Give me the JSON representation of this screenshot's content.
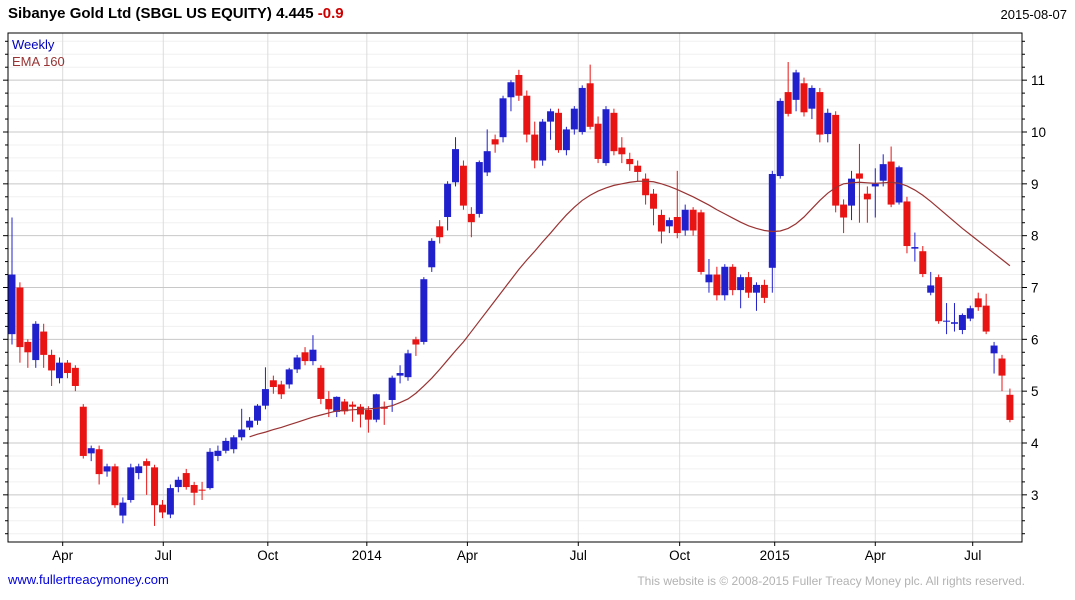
{
  "header": {
    "title": "Sibanye Gold Ltd (SBGL US EQUITY)",
    "price": "4.445",
    "change": "-0.9",
    "date": "2015-08-07"
  },
  "legend": {
    "timeframe": "Weekly",
    "overlay": "EMA 160"
  },
  "footer": {
    "link": "www.fullertreacymoney.com",
    "copyright": "This website is © 2008-2015 Fuller Treacy Money plc. All rights reserved."
  },
  "colors": {
    "up": "#2020cc",
    "down": "#e81414",
    "ema": "#993333",
    "title_change": "#cc0000",
    "grid_major": "#c8c8c8",
    "grid_minor": "#f0f0f0",
    "grid_vertical": "#dcdcdc",
    "axis": "#000000",
    "label": "#000000"
  },
  "chart_data": {
    "type": "candlestick",
    "instrument": "Sibanye Gold Ltd (SBGL US EQUITY)",
    "timeframe": "Weekly",
    "overlay": "EMA 160",
    "last_price": 4.445,
    "change": -0.9,
    "ylim": [
      2.09,
      11.91
    ],
    "y_major_ticks": [
      3,
      4,
      5,
      6,
      7,
      8,
      9,
      10,
      11
    ],
    "y_minor_step": 0.25,
    "x_ticks": [
      {
        "week": 6.4,
        "label": "Apr"
      },
      {
        "week": 19.1,
        "label": "Jul"
      },
      {
        "week": 32.3,
        "label": "Oct"
      },
      {
        "week": 44.8,
        "label": "2014"
      },
      {
        "week": 57.5,
        "label": "Apr"
      },
      {
        "week": 71.5,
        "label": "Jul"
      },
      {
        "week": 84.3,
        "label": "Oct"
      },
      {
        "week": 96.3,
        "label": "2015"
      },
      {
        "week": 109.0,
        "label": "Apr"
      },
      {
        "week": 121.3,
        "label": "Jul"
      }
    ],
    "candles": [
      [
        6.1,
        8.35,
        5.9,
        7.25
      ],
      [
        7.0,
        7.1,
        5.55,
        5.85
      ],
      [
        5.95,
        6.0,
        5.45,
        5.75
      ],
      [
        5.6,
        6.35,
        5.45,
        6.3
      ],
      [
        6.15,
        6.3,
        5.45,
        5.7
      ],
      [
        5.7,
        5.8,
        5.1,
        5.4
      ],
      [
        5.25,
        5.65,
        5.15,
        5.55
      ],
      [
        5.55,
        5.6,
        5.25,
        5.35
      ],
      [
        5.45,
        5.5,
        5.0,
        5.1
      ],
      [
        4.7,
        4.75,
        3.7,
        3.75
      ],
      [
        3.8,
        3.95,
        3.65,
        3.9
      ],
      [
        3.88,
        3.95,
        3.2,
        3.4
      ],
      [
        3.45,
        3.6,
        3.35,
        3.55
      ],
      [
        3.55,
        3.6,
        2.75,
        2.8
      ],
      [
        2.6,
        2.95,
        2.45,
        2.85
      ],
      [
        2.9,
        3.6,
        2.85,
        3.53
      ],
      [
        3.42,
        3.6,
        3.3,
        3.55
      ],
      [
        3.65,
        3.7,
        3.0,
        3.56
      ],
      [
        3.53,
        3.58,
        2.4,
        2.8
      ],
      [
        2.81,
        2.9,
        2.55,
        2.66
      ],
      [
        2.62,
        3.2,
        2.55,
        3.13
      ],
      [
        3.15,
        3.35,
        3.05,
        3.29
      ],
      [
        3.42,
        3.5,
        3.1,
        3.15
      ],
      [
        3.19,
        3.25,
        2.8,
        3.04
      ],
      [
        3.1,
        3.25,
        2.9,
        3.08
      ],
      [
        3.13,
        3.9,
        3.1,
        3.83
      ],
      [
        3.75,
        3.95,
        3.65,
        3.85
      ],
      [
        3.85,
        4.1,
        3.8,
        4.04
      ],
      [
        3.88,
        4.15,
        3.8,
        4.11
      ],
      [
        4.11,
        4.66,
        4.05,
        4.26
      ],
      [
        4.3,
        4.5,
        4.25,
        4.43
      ],
      [
        4.43,
        4.75,
        4.35,
        4.72
      ],
      [
        4.72,
        5.46,
        4.65,
        5.04
      ],
      [
        5.21,
        5.3,
        4.95,
        5.08
      ],
      [
        5.13,
        5.2,
        4.85,
        4.94
      ],
      [
        5.13,
        5.45,
        5.05,
        5.42
      ],
      [
        5.42,
        5.7,
        5.35,
        5.65
      ],
      [
        5.75,
        5.85,
        5.5,
        5.58
      ],
      [
        5.58,
        6.08,
        5.5,
        5.8
      ],
      [
        5.45,
        5.5,
        4.75,
        4.85
      ],
      [
        4.85,
        5.0,
        4.5,
        4.65
      ],
      [
        4.6,
        4.9,
        4.5,
        4.89
      ],
      [
        4.8,
        4.85,
        4.55,
        4.61
      ],
      [
        4.74,
        4.8,
        4.41,
        4.7
      ],
      [
        4.7,
        4.75,
        4.3,
        4.55
      ],
      [
        4.64,
        4.71,
        4.2,
        4.45
      ],
      [
        4.45,
        4.95,
        4.4,
        4.94
      ],
      [
        4.7,
        4.8,
        4.35,
        4.66
      ],
      [
        4.83,
        5.3,
        4.6,
        5.26
      ],
      [
        5.3,
        5.5,
        5.15,
        5.35
      ],
      [
        5.27,
        5.8,
        5.2,
        5.73
      ],
      [
        6.0,
        6.05,
        5.68,
        5.9
      ],
      [
        5.95,
        7.2,
        5.9,
        7.16
      ],
      [
        7.39,
        7.95,
        7.3,
        7.9
      ],
      [
        8.18,
        8.3,
        7.85,
        7.97
      ],
      [
        8.36,
        9.05,
        8.1,
        9.0
      ],
      [
        9.03,
        9.9,
        8.95,
        9.67
      ],
      [
        9.35,
        9.45,
        8.5,
        8.58
      ],
      [
        8.42,
        8.55,
        7.97,
        8.26
      ],
      [
        8.42,
        9.45,
        8.35,
        9.42
      ],
      [
        9.22,
        10.05,
        9.15,
        9.63
      ],
      [
        9.86,
        9.95,
        9.6,
        9.76
      ],
      [
        9.9,
        10.7,
        9.8,
        10.65
      ],
      [
        10.67,
        11.0,
        10.4,
        10.96
      ],
      [
        11.1,
        11.2,
        10.6,
        10.7
      ],
      [
        10.7,
        10.8,
        9.8,
        9.95
      ],
      [
        9.95,
        10.2,
        9.3,
        9.45
      ],
      [
        9.45,
        10.25,
        9.35,
        10.2
      ],
      [
        10.2,
        10.45,
        9.85,
        10.4
      ],
      [
        10.37,
        10.45,
        9.6,
        9.65
      ],
      [
        9.65,
        10.1,
        9.55,
        10.05
      ],
      [
        10.05,
        10.5,
        9.95,
        10.45
      ],
      [
        10.0,
        10.9,
        9.95,
        10.85
      ],
      [
        10.94,
        11.3,
        10.05,
        10.1
      ],
      [
        10.16,
        10.3,
        9.4,
        9.48
      ],
      [
        9.4,
        10.5,
        9.35,
        10.44
      ],
      [
        10.37,
        10.45,
        9.55,
        9.63
      ],
      [
        9.7,
        9.9,
        9.4,
        9.57
      ],
      [
        9.48,
        9.6,
        9.25,
        9.38
      ],
      [
        9.35,
        9.45,
        9.05,
        9.23
      ],
      [
        9.1,
        9.2,
        8.6,
        8.78
      ],
      [
        8.81,
        8.9,
        8.2,
        8.52
      ],
      [
        8.4,
        8.5,
        7.85,
        8.08
      ],
      [
        8.18,
        8.35,
        8.05,
        8.3
      ],
      [
        8.36,
        9.25,
        7.95,
        8.05
      ],
      [
        8.1,
        8.6,
        8.0,
        8.5
      ],
      [
        8.5,
        8.55,
        8.0,
        8.1
      ],
      [
        8.45,
        8.5,
        7.25,
        7.3
      ],
      [
        7.1,
        7.55,
        6.9,
        7.25
      ],
      [
        7.25,
        7.4,
        6.75,
        6.85
      ],
      [
        6.85,
        7.45,
        6.75,
        7.4
      ],
      [
        7.4,
        7.45,
        6.85,
        6.95
      ],
      [
        6.95,
        7.25,
        6.6,
        7.2
      ],
      [
        7.2,
        7.3,
        6.8,
        6.9
      ],
      [
        6.9,
        7.1,
        6.55,
        7.05
      ],
      [
        7.05,
        7.15,
        6.7,
        6.8
      ],
      [
        7.38,
        9.25,
        6.9,
        9.19
      ],
      [
        9.15,
        10.65,
        9.1,
        10.6
      ],
      [
        10.77,
        11.35,
        10.3,
        10.35
      ],
      [
        10.62,
        11.2,
        10.4,
        11.15
      ],
      [
        10.94,
        11.05,
        10.3,
        10.38
      ],
      [
        10.45,
        10.9,
        10.25,
        10.85
      ],
      [
        10.77,
        10.85,
        9.8,
        9.95
      ],
      [
        9.96,
        10.45,
        9.8,
        10.37
      ],
      [
        10.33,
        10.4,
        8.45,
        8.58
      ],
      [
        8.6,
        8.7,
        8.05,
        8.35
      ],
      [
        8.58,
        9.25,
        8.3,
        9.1
      ],
      [
        9.2,
        9.77,
        8.25,
        9.1
      ],
      [
        8.81,
        8.95,
        8.25,
        8.7
      ],
      [
        8.95,
        9.3,
        8.35,
        9.0
      ],
      [
        9.06,
        9.57,
        8.95,
        9.38
      ],
      [
        9.43,
        9.72,
        8.55,
        8.6
      ],
      [
        8.64,
        9.35,
        8.6,
        9.32
      ],
      [
        8.66,
        8.75,
        7.66,
        7.8
      ],
      [
        7.75,
        8.06,
        7.5,
        7.78
      ],
      [
        7.7,
        7.8,
        7.2,
        7.26
      ],
      [
        6.9,
        7.3,
        6.85,
        7.04
      ],
      [
        7.2,
        7.25,
        6.3,
        6.35
      ],
      [
        6.34,
        6.7,
        6.1,
        6.36
      ],
      [
        6.3,
        6.7,
        6.15,
        6.33
      ],
      [
        6.18,
        6.5,
        6.1,
        6.47
      ],
      [
        6.4,
        6.65,
        6.35,
        6.6
      ],
      [
        6.79,
        6.9,
        6.55,
        6.62
      ],
      [
        6.65,
        6.88,
        6.1,
        6.15
      ],
      [
        5.73,
        5.95,
        5.34,
        5.88
      ],
      [
        5.63,
        5.7,
        5.0,
        5.3
      ],
      [
        4.93,
        5.05,
        4.4,
        4.445
      ]
    ],
    "ema": {
      "start_week": 30,
      "values": [
        4.12,
        4.17,
        4.21,
        4.26,
        4.3,
        4.35,
        4.4,
        4.45,
        4.5,
        4.54,
        4.58,
        4.62,
        4.63,
        4.64,
        4.65,
        4.66,
        4.67,
        4.69,
        4.72,
        4.78,
        4.85,
        4.96,
        5.1,
        5.25,
        5.42,
        5.6,
        5.78,
        5.95,
        6.15,
        6.35,
        6.55,
        6.75,
        6.95,
        7.15,
        7.35,
        7.53,
        7.7,
        7.88,
        8.05,
        8.23,
        8.4,
        8.55,
        8.68,
        8.78,
        8.86,
        8.92,
        8.97,
        9.0,
        9.03,
        9.05,
        9.05,
        9.04,
        9.0,
        8.95,
        8.89,
        8.82,
        8.75,
        8.67,
        8.59,
        8.5,
        8.42,
        8.34,
        8.26,
        8.19,
        8.14,
        8.1,
        8.08,
        8.09,
        8.14,
        8.23,
        8.36,
        8.52,
        8.68,
        8.82,
        8.93,
        9.0,
        9.02,
        9.03,
        9.02,
        9.01,
        9.02,
        9.03,
        9.01,
        8.96,
        8.88,
        8.78,
        8.66,
        8.53,
        8.4,
        8.27,
        8.14,
        8.02,
        7.9,
        7.78,
        7.66,
        7.54,
        7.42
      ]
    }
  }
}
